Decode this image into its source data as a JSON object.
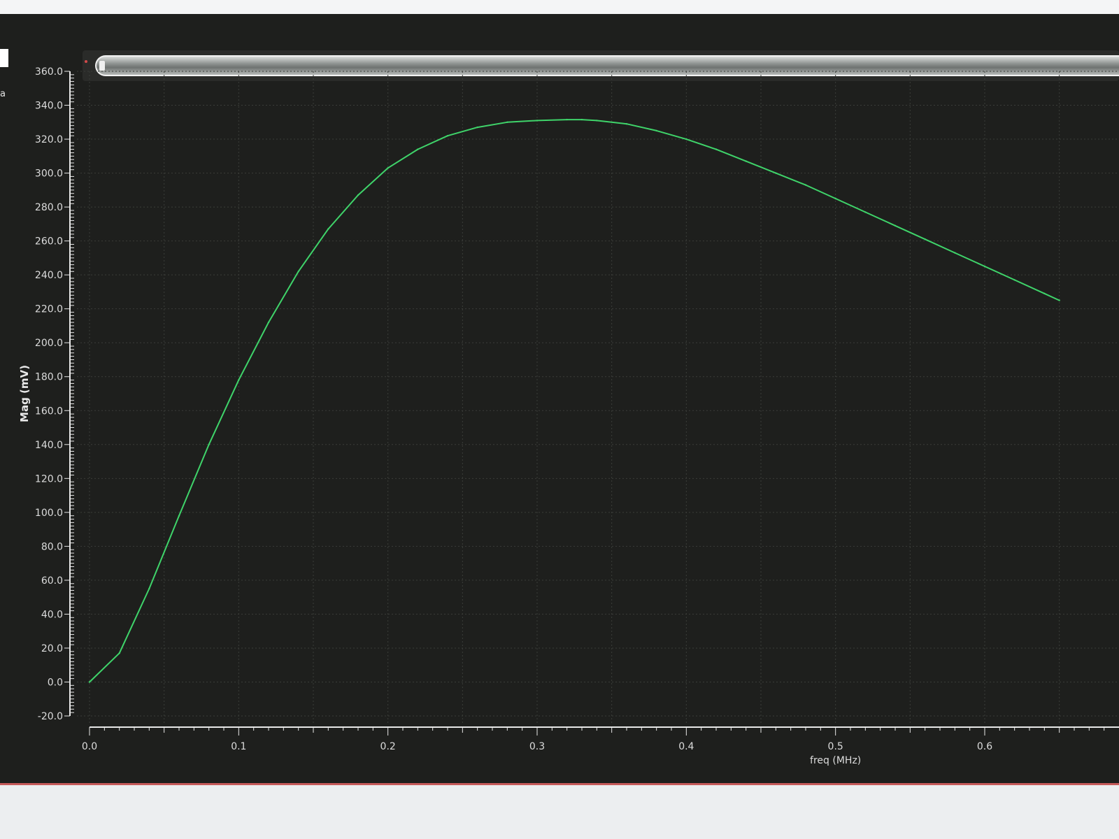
{
  "side_letter": "a",
  "chart_data": {
    "type": "line",
    "title": "",
    "xlabel": "freq (MHz)",
    "ylabel": "Mag (mV)",
    "xlim": [
      0.0,
      0.65
    ],
    "ylim": [
      -20.0,
      360.0
    ],
    "grid": true,
    "x_ticks": [
      "0.0",
      "0.1",
      "0.2",
      "0.3",
      "0.4",
      "0.5",
      "0.6"
    ],
    "y_ticks": [
      "360.0",
      "340.0",
      "320.0",
      "300.0",
      "280.0",
      "260.0",
      "240.0",
      "220.0",
      "200.0",
      "180.0",
      "160.0",
      "140.0",
      "120.0",
      "100.0",
      "80.0",
      "60.0",
      "40.0",
      "20.0",
      "0.0",
      "-20.0"
    ],
    "line_color": "#3fd46a",
    "background_color": "#1e1f1d",
    "series": [
      {
        "x": [
          0.0,
          0.02,
          0.04,
          0.06,
          0.08,
          0.1,
          0.12,
          0.14,
          0.16,
          0.18,
          0.2,
          0.22,
          0.24,
          0.26,
          0.28,
          0.3,
          0.32,
          0.33,
          0.34,
          0.36,
          0.38,
          0.4,
          0.42,
          0.44,
          0.46,
          0.48,
          0.5,
          0.52,
          0.54,
          0.56,
          0.58,
          0.6,
          0.62,
          0.64,
          0.65
        ],
        "y": [
          0.0,
          17.0,
          55.0,
          98.0,
          140.0,
          178.0,
          212.0,
          242.0,
          267.0,
          287.0,
          303.0,
          314.0,
          322.0,
          327.0,
          330.0,
          331.0,
          331.5,
          331.5,
          331.0,
          329.0,
          325.0,
          320.0,
          314.0,
          307.0,
          300.0,
          293.0,
          285.0,
          277.0,
          269.0,
          261.0,
          253.0,
          245.0,
          237.0,
          229.0,
          225.0
        ]
      }
    ]
  }
}
